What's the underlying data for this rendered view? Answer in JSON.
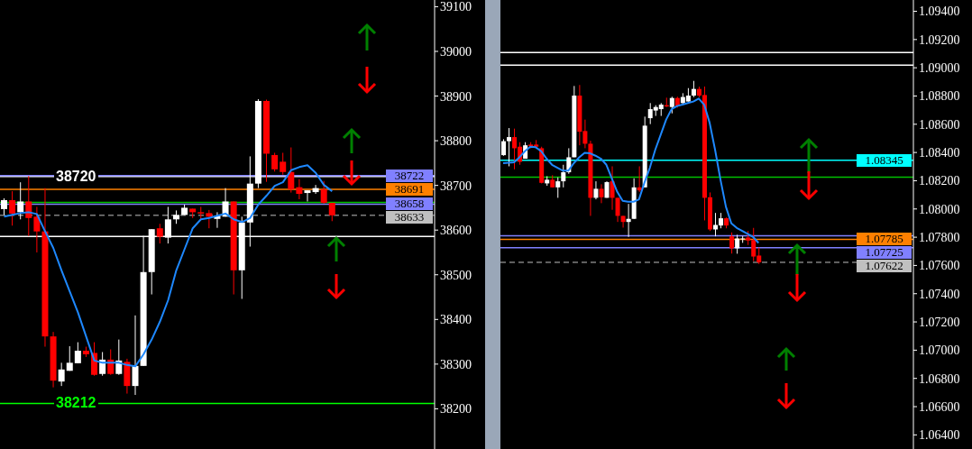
{
  "chart_data": [
    {
      "type": "candlestick",
      "tick_labels": "y",
      "ylim": [
        38110,
        39115
      ],
      "yticks": [
        38200,
        38300,
        38400,
        38500,
        38600,
        38700,
        38800,
        38900,
        39000,
        39100
      ],
      "categories": [
        null,
        null,
        null,
        null,
        null,
        null,
        null,
        null,
        null,
        null,
        null,
        null,
        null,
        null,
        null,
        null,
        null,
        null,
        null,
        null,
        null,
        null,
        null,
        null,
        null,
        null,
        null,
        null,
        null,
        null,
        null,
        null,
        null,
        null,
        null,
        null,
        null,
        null,
        null,
        null,
        null
      ],
      "ohlc": [
        [
          38647,
          38671,
          38634,
          38667
        ],
        [
          38667,
          38687,
          38610,
          38637
        ],
        [
          38640,
          38707,
          38624,
          38664
        ],
        [
          38664,
          38721,
          38587,
          38627
        ],
        [
          38630,
          38652,
          38550,
          38597
        ],
        [
          38597,
          38694,
          38339,
          38362
        ],
        [
          38362,
          38372,
          38248,
          38263
        ],
        [
          38261,
          38303,
          38251,
          38288
        ],
        [
          38285,
          38340,
          38285,
          38303
        ],
        [
          38302,
          38349,
          38302,
          38330
        ],
        [
          38330,
          38339,
          38316,
          38322
        ],
        [
          38325,
          38349,
          38274,
          38276
        ],
        [
          38278,
          38327,
          38274,
          38310
        ],
        [
          38310,
          38333,
          38276,
          38278
        ],
        [
          38278,
          38355,
          38276,
          38308
        ],
        [
          38305,
          38312,
          38234,
          38251
        ],
        [
          38251,
          38409,
          38231,
          38296
        ],
        [
          38296,
          38587,
          38296,
          38506
        ],
        [
          38506,
          38602,
          38456,
          38602
        ],
        [
          38604,
          38614,
          38570,
          38585
        ],
        [
          38583,
          38652,
          38570,
          38624
        ],
        [
          38624,
          38644,
          38614,
          38634
        ],
        [
          38634,
          38657,
          38634,
          38650
        ],
        [
          38648,
          38648,
          38627,
          38640
        ],
        [
          38640,
          38652,
          38624,
          38637
        ],
        [
          38638,
          38645,
          38604,
          38630
        ],
        [
          38625,
          38640,
          38605,
          38632
        ],
        [
          38630,
          38694,
          38630,
          38664
        ],
        [
          38664,
          38664,
          38456,
          38510
        ],
        [
          38510,
          38630,
          38446,
          38617
        ],
        [
          38617,
          38765,
          38563,
          38704
        ],
        [
          38704,
          38893,
          38694,
          38889
        ],
        [
          38889,
          38892,
          38708,
          38771
        ],
        [
          38768,
          38773,
          38731,
          38736
        ],
        [
          38753,
          38773,
          38724,
          38730
        ],
        [
          38730,
          38785,
          38684,
          38691
        ],
        [
          38696,
          38714,
          38669,
          38681
        ],
        [
          38683,
          38689,
          38664,
          38689
        ],
        [
          38685,
          38701,
          38681,
          38694
        ],
        [
          38691,
          38710,
          38659,
          38661
        ],
        [
          38661,
          38661,
          38620,
          38633
        ]
      ],
      "colors": [
        "#ffffff",
        "#ff0000",
        "#ffffff",
        "#ff0000",
        "#ff0000",
        "#ff0000",
        "#ff0000",
        "#ffffff",
        "#ffffff",
        "#ffffff",
        "#ff0000",
        "#ff0000",
        "#ffffff",
        "#ff0000",
        "#ffffff",
        "#ff0000",
        "#ffffff",
        "#ffffff",
        "#ffffff",
        "#ff0000",
        "#ffffff",
        "#ffffff",
        "#ffffff",
        "#ff0000",
        "#ff0000",
        "#ff0000",
        "#ffffff",
        "#ffffff",
        "#ff0000",
        "#ffffff",
        "#ffffff",
        "#ffffff",
        "#ff0000",
        "#ff0000",
        "#ff0000",
        "#ff0000",
        "#ff0000",
        "#ffffff",
        "#ffffff",
        "#ff0000",
        "#ff0000"
      ],
      "series": [
        {
          "type": "line",
          "color": "#1e88ff",
          "values": [
            38630,
            38634,
            38638,
            38640,
            38636,
            38597,
            38560,
            38510,
            38463,
            38416,
            38362,
            38308,
            38303,
            38303,
            38303,
            38298,
            38295,
            38322,
            38355,
            38395,
            38443,
            38510,
            38557,
            38604,
            38624,
            38627,
            38632,
            38637,
            38624,
            38618,
            38627,
            38657,
            38677,
            38699,
            38707,
            38734,
            38741,
            38745,
            38728,
            38701,
            38687
          ]
        }
      ],
      "ref_lines": [
        {
          "axis": "y",
          "value": 38720,
          "color": "#ffffff"
        },
        {
          "axis": "y",
          "value": 38722,
          "label": "38722",
          "color": "#8080ff"
        },
        {
          "axis": "y",
          "value": 38691,
          "label": "38691",
          "color": "#ff8000"
        },
        {
          "axis": "y",
          "value": 38658,
          "label": "38658",
          "color": "#8080ff"
        },
        {
          "axis": "y",
          "value": 38662,
          "color": "#00c000"
        },
        {
          "axis": "y",
          "value": 38633,
          "label": "38633",
          "color": "#c0c0c0",
          "line_style": "dashed"
        },
        {
          "axis": "y",
          "value": 38586,
          "color": "#ffffff"
        },
        {
          "axis": "y",
          "value": 38212,
          "color": "#00ff00"
        }
      ],
      "annotations": [
        {
          "text": "38720",
          "y": 38720
        },
        {
          "text": "38212",
          "y": 38212
        }
      ]
    },
    {
      "type": "candlestick",
      "tick_labels": "y",
      "ylim": [
        1.063,
        1.0948
      ],
      "yticks": [
        {
          "value": 1.064,
          "label": "1.06400"
        },
        {
          "value": 1.066,
          "label": "1.06600"
        },
        {
          "value": 1.068,
          "label": "1.06800"
        },
        {
          "value": 1.07,
          "label": "1.07000"
        },
        {
          "value": 1.072,
          "label": "1.07200"
        },
        {
          "value": 1.074,
          "label": "1.07400"
        },
        {
          "value": 1.076,
          "label": "1.07600"
        },
        {
          "value": 1.078,
          "label": "1.07800"
        },
        {
          "value": 1.08,
          "label": "1.08000"
        },
        {
          "value": 1.082,
          "label": "1.08200"
        },
        {
          "value": 1.084,
          "label": "1.08400"
        },
        {
          "value": 1.086,
          "label": "1.08600"
        },
        {
          "value": 1.088,
          "label": "1.08800"
        },
        {
          "value": 1.09,
          "label": "1.09000"
        },
        {
          "value": 1.092,
          "label": "1.09200"
        },
        {
          "value": 1.094,
          "label": "1.09400"
        }
      ],
      "categories": [
        null,
        null,
        null,
        null,
        null,
        null,
        null,
        null,
        null,
        null,
        null,
        null,
        null,
        null,
        null,
        null,
        null,
        null,
        null,
        null,
        null,
        null,
        null,
        null,
        null,
        null,
        null,
        null,
        null,
        null,
        null,
        null,
        null,
        null,
        null,
        null,
        null,
        null,
        null,
        null,
        null,
        null,
        null,
        null,
        null,
        null,
        null,
        null
      ],
      "ohlc": [
        [
          1.08381,
          1.08494,
          1.08377,
          1.0848
        ],
        [
          1.0848,
          1.08573,
          1.08302,
          1.08509
        ],
        [
          1.08509,
          1.08569,
          1.08281,
          1.0843
        ],
        [
          1.08441,
          1.08473,
          1.08313,
          1.08334
        ],
        [
          1.08356,
          1.08473,
          1.08356,
          1.08451
        ],
        [
          1.08456,
          1.08473,
          1.0843,
          1.08445
        ],
        [
          1.08456,
          1.08488,
          1.0843,
          1.08441
        ],
        [
          1.0843,
          1.08441,
          1.08181,
          1.08185
        ],
        [
          1.08181,
          1.08232,
          1.08164,
          1.08207
        ],
        [
          1.08207,
          1.08239,
          1.08153,
          1.08153
        ],
        [
          1.08153,
          1.08224,
          1.08079,
          1.08196
        ],
        [
          1.08196,
          1.08313,
          1.08153,
          1.0826
        ],
        [
          1.0826,
          1.0843,
          1.08249,
          1.08366
        ],
        [
          1.08366,
          1.08871,
          1.08366,
          1.08803
        ],
        [
          1.08803,
          1.08878,
          1.08451,
          1.08547
        ],
        [
          1.08552,
          1.08633,
          1.0843,
          1.08462
        ],
        [
          1.08462,
          1.08483,
          1.07951,
          1.08079
        ],
        [
          1.08079,
          1.08196,
          1.08068,
          1.08143
        ],
        [
          1.08143,
          1.08175,
          1.08041,
          1.08083
        ],
        [
          1.08079,
          1.08196,
          1.08079,
          1.0819
        ],
        [
          1.08196,
          1.08302,
          1.07994,
          1.08079
        ],
        [
          1.08079,
          1.08079,
          1.07908,
          1.07951
        ],
        [
          1.07951,
          1.07951,
          1.07868,
          1.07908
        ],
        [
          1.07908,
          1.08036,
          1.07802,
          1.0793
        ],
        [
          1.0793,
          1.08217,
          1.0793,
          1.08153
        ],
        [
          1.08153,
          1.08302,
          1.08121,
          1.08132
        ],
        [
          1.08153,
          1.08654,
          1.08153,
          1.0859
        ],
        [
          1.08643,
          1.0875,
          1.08601,
          1.08707
        ],
        [
          1.08697,
          1.08735,
          1.08659,
          1.08722
        ],
        [
          1.08707,
          1.0875,
          1.08659,
          1.08739
        ],
        [
          1.08735,
          1.08788,
          1.08722,
          1.08726
        ],
        [
          1.08722,
          1.08795,
          1.08677,
          1.08786
        ],
        [
          1.08786,
          1.08795,
          1.08718,
          1.08728
        ],
        [
          1.0875,
          1.0882,
          1.08741,
          1.08793
        ],
        [
          1.08761,
          1.08856,
          1.08761,
          1.08803
        ],
        [
          1.08803,
          1.08907,
          1.08792,
          1.0885
        ],
        [
          1.0885,
          1.08866,
          1.08792,
          1.08803
        ],
        [
          1.08807,
          1.08867,
          1.07919,
          1.08079
        ],
        [
          1.08083,
          1.08117,
          1.07844,
          1.07855
        ],
        [
          1.07855,
          1.07972,
          1.07806,
          1.07887
        ],
        [
          1.07883,
          1.07972,
          1.07863,
          1.07934
        ],
        [
          1.07934,
          1.0794,
          1.07863,
          1.07883
        ],
        [
          1.07806,
          1.07834,
          1.07684,
          1.07721
        ],
        [
          1.07721,
          1.07817,
          1.07683,
          1.07791
        ],
        [
          1.07785,
          1.07808,
          1.0776,
          1.07791
        ],
        [
          1.07798,
          1.07844,
          1.07745,
          1.07777
        ],
        [
          1.0778,
          1.07866,
          1.07631,
          1.07663
        ],
        [
          1.0767,
          1.07727,
          1.0761,
          1.07622
        ]
      ],
      "colors": [
        "#ffffff",
        "#ffffff",
        "#ff0000",
        "#ff0000",
        "#ffffff",
        "#ff0000",
        "#ff0000",
        "#ff0000",
        "#ffffff",
        "#ff0000",
        "#ffffff",
        "#ffffff",
        "#ffffff",
        "#ffffff",
        "#ff0000",
        "#ff0000",
        "#ff0000",
        "#ffffff",
        "#ff0000",
        "#ffffff",
        "#ff0000",
        "#ff0000",
        "#ff0000",
        "#ffffff",
        "#ffffff",
        "#ff0000",
        "#ffffff",
        "#ffffff",
        "#ffffff",
        "#ffffff",
        "#ff0000",
        "#ffffff",
        "#ff0000",
        "#ffffff",
        "#ffffff",
        "#ffffff",
        "#ff0000",
        "#ff0000",
        "#ff0000",
        "#ffffff",
        "#ffffff",
        "#ff0000",
        "#ff0000",
        "#ffffff",
        "#ffffff",
        "#ff0000",
        "#ff0000",
        "#ff0000"
      ],
      "series": [
        {
          "type": "line",
          "color": "#1e88ff",
          "values": [
            1.08324,
            1.08327,
            1.0833,
            1.08366,
            1.08409,
            1.08441,
            1.08437,
            1.08409,
            1.08356,
            1.08313,
            1.08292,
            1.08271,
            1.08271,
            1.08324,
            1.08366,
            1.08398,
            1.08394,
            1.08377,
            1.08356,
            1.08313,
            1.08217,
            1.08121,
            1.08057,
            1.08051,
            1.08051,
            1.08068,
            1.08186,
            1.08292,
            1.0842,
            1.08526,
            1.08633,
            1.08707,
            1.08729,
            1.08739,
            1.0875,
            1.08761,
            1.08782,
            1.08739,
            1.08611,
            1.0842,
            1.08207,
            1.08015,
            1.07898,
            1.07866,
            1.07844,
            1.07823,
            1.07802,
            1.07759
          ]
        }
      ],
      "ref_lines": [
        {
          "axis": "y",
          "value": 1.09108,
          "color": "#ffffff"
        },
        {
          "axis": "y",
          "value": 1.09018,
          "color": "#ffffff"
        },
        {
          "axis": "y",
          "value": 1.08345,
          "label": "1.08345",
          "color": "#00ffff"
        },
        {
          "axis": "y",
          "value": 1.08226,
          "color": "#00c000"
        },
        {
          "axis": "y",
          "value": 1.0781,
          "color": "#8080ff"
        },
        {
          "axis": "y",
          "value": 1.07785,
          "label": "1.07785",
          "color": "#ff8000"
        },
        {
          "axis": "y",
          "value": 1.07725,
          "label": "1.07725",
          "color": "#8080ff"
        },
        {
          "axis": "y",
          "value": 1.07622,
          "label": "1.07622",
          "color": "#c0c0c0",
          "line_style": "dashed"
        }
      ]
    }
  ]
}
